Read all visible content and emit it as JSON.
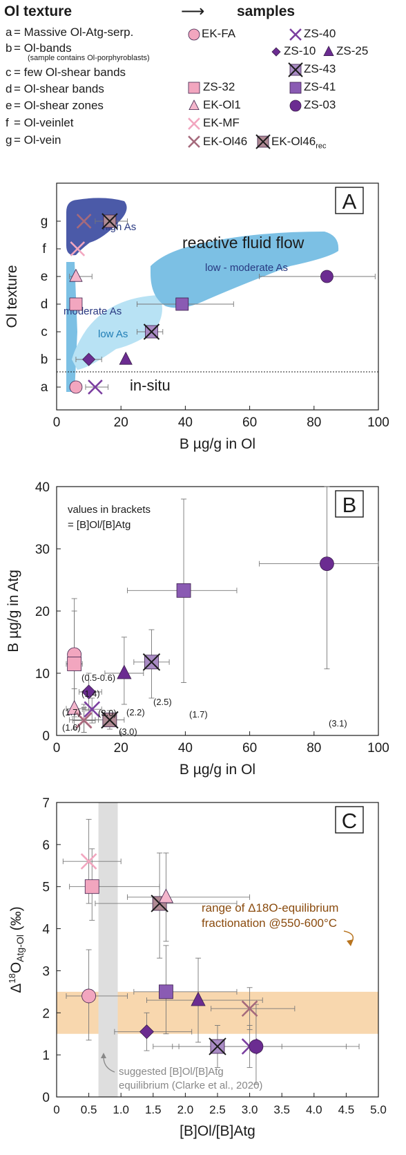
{
  "legend": {
    "texture_header": "Ol texture",
    "samples_header": "samples",
    "textures": [
      {
        "code": "a",
        "label": "= Massive Ol-Atg-serp."
      },
      {
        "code": "b",
        "label": "= Ol-bands"
      },
      {
        "code": "c",
        "label": "= few Ol-shear bands"
      },
      {
        "code": "d",
        "label": "= Ol-shear bands"
      },
      {
        "code": "e",
        "label": "= Ol-shear zones"
      },
      {
        "code": "f",
        "label": "= Ol-veinlet"
      },
      {
        "code": "g",
        "label": "= Ol-vein"
      }
    ],
    "band_note": "(sample contains Ol-porphyroblasts)",
    "samples": [
      {
        "name": "EK-FA",
        "shape": "circle",
        "color": "#f2a6bf"
      },
      {
        "name": "ZS-40",
        "shape": "x",
        "color": "#7b3fa0"
      },
      {
        "name": "ZS-10",
        "shape": "diamond",
        "color": "#6b2c91"
      },
      {
        "name": "ZS-25",
        "shape": "triangle",
        "color": "#6b2c91"
      },
      {
        "name": "ZS-43",
        "shape": "squarex",
        "color": "#a98bc4"
      },
      {
        "name": "ZS-32",
        "shape": "square",
        "color": "#f2a6bf"
      },
      {
        "name": "ZS-41",
        "shape": "square",
        "color": "#8a5bb3"
      },
      {
        "name": "EK-Ol1",
        "shape": "triangle",
        "color": "#f4b6cc"
      },
      {
        "name": "ZS-03",
        "shape": "circle",
        "color": "#6b2c91"
      },
      {
        "name": "EK-MF",
        "shape": "x",
        "color": "#f2a6bf"
      },
      {
        "name": "EK-Ol46",
        "shape": "x",
        "color": "#a56a7c"
      },
      {
        "name": "EK-Ol46",
        "sub": "rec",
        "shape": "squarex",
        "color": "#b08a94"
      }
    ]
  },
  "chart_data": [
    {
      "type": "scatter",
      "panel": "A",
      "xlabel": "B µg/g in Ol",
      "ylabel": "Ol texture",
      "xlim": [
        0,
        100
      ],
      "xticks": [
        0,
        20,
        40,
        60,
        80,
        100
      ],
      "ycategories": [
        "a",
        "b",
        "c",
        "d",
        "e",
        "f",
        "g"
      ],
      "grid": false,
      "points": [
        {
          "sample": "EK-FA",
          "x": 6,
          "y": "a"
        },
        {
          "sample": "ZS-40",
          "x": 12,
          "y": "a",
          "xerr": [
            9,
            16
          ]
        },
        {
          "sample": "ZS-10",
          "x": 10,
          "y": "b",
          "xerr": [
            6,
            14
          ]
        },
        {
          "sample": "ZS-25",
          "x": 21.5,
          "y": "b"
        },
        {
          "sample": "ZS-43",
          "x": 29.5,
          "y": "c",
          "xerr": [
            25,
            33
          ]
        },
        {
          "sample": "ZS-41",
          "x": 39,
          "y": "d",
          "xerr": [
            25,
            55
          ]
        },
        {
          "sample": "ZS-32",
          "x": 6,
          "y": "d"
        },
        {
          "sample": "EK-Ol1",
          "x": 6,
          "y": "e",
          "xerr": [
            4,
            11
          ]
        },
        {
          "sample": "ZS-03",
          "x": 84,
          "y": "e",
          "xerr": [
            63,
            99
          ]
        },
        {
          "sample": "EK-MF",
          "x": 6.5,
          "y": "f"
        },
        {
          "sample": "EK-Ol46",
          "x": 8.5,
          "y": "g"
        },
        {
          "sample": "EK-Ol46rec",
          "x": 16.5,
          "y": "g",
          "xerr": [
            12,
            22
          ]
        }
      ],
      "annotations": [
        "high As",
        "reactive fluid flow",
        "low - moderate As",
        "moderate As",
        "low As",
        "in-situ"
      ]
    },
    {
      "type": "scatter",
      "panel": "B",
      "xlabel": "B µg/g in Ol",
      "ylabel": "B µg/g in Atg",
      "xlim": [
        0,
        100
      ],
      "ylim": [
        0,
        40
      ],
      "xticks": [
        0,
        20,
        40,
        60,
        80,
        100
      ],
      "yticks": [
        0,
        10,
        20,
        30,
        40
      ],
      "grid": false,
      "note_line1": "values in brackets",
      "note_line2": "= [B]Ol/[B]Atg",
      "points": [
        {
          "sample": "EK-FA",
          "x": 5.5,
          "y": 13,
          "xerr": [
            4,
            7
          ],
          "yerr": [
            4,
            22
          ],
          "label": "(0.5-0.6)"
        },
        {
          "sample": "ZS-32",
          "x": 5.5,
          "y": 11.5,
          "xerr": [
            3,
            8
          ],
          "yerr": [
            3,
            20
          ]
        },
        {
          "sample": "ZS-10",
          "x": 10,
          "y": 7,
          "xerr": [
            7,
            14
          ],
          "yerr": [
            4,
            10
          ],
          "label": "(1.4)"
        },
        {
          "sample": "ZS-25",
          "x": 21,
          "y": 10,
          "xerr": [
            15,
            27
          ],
          "yerr": [
            5,
            15.8
          ],
          "label": "(2.2)"
        },
        {
          "sample": "ZS-43",
          "x": 29.5,
          "y": 11.8,
          "xerr": [
            24,
            35
          ],
          "yerr": [
            6,
            17
          ],
          "label": "(2.5)"
        },
        {
          "sample": "ZS-41",
          "x": 39.5,
          "y": 23.3,
          "xerr": [
            22,
            56
          ],
          "yerr": [
            8.5,
            38
          ],
          "label": "(1.7)"
        },
        {
          "sample": "ZS-03",
          "x": 84,
          "y": 27.6,
          "xerr": [
            63,
            100
          ],
          "yerr": [
            10.7,
            40
          ],
          "label": "(3.1)"
        },
        {
          "sample": "EK-Ol1",
          "x": 5.5,
          "y": 4.3,
          "xerr": [
            3,
            9
          ],
          "yerr": [
            1,
            7.5
          ],
          "label": "(1.7)"
        },
        {
          "sample": "ZS-40",
          "x": 11,
          "y": 4.2,
          "xerr": [
            8,
            14
          ],
          "yerr": [
            2,
            6
          ],
          "label": "(3.0)"
        },
        {
          "sample": "EK-MF",
          "x": 8.5,
          "y": 2.5,
          "xerr": [
            4,
            13
          ],
          "yerr": [
            0.5,
            5
          ],
          "label": "(1.6)"
        },
        {
          "sample": "EK-Ol46",
          "x": 8.5,
          "y": 2.4,
          "xerr": [
            5,
            12
          ],
          "yerr": [
            0.5,
            4.5
          ]
        },
        {
          "sample": "EK-Ol46rec",
          "x": 16.5,
          "y": 2.5,
          "xerr": [
            12,
            21
          ],
          "yerr": [
            1,
            4
          ],
          "label": "(3.0)"
        }
      ]
    },
    {
      "type": "scatter",
      "panel": "C",
      "xlabel": "[B]Ol/[B]Atg",
      "ylabel_main": "Δ",
      "ylabel_sup": "18",
      "ylabel_rest": "O",
      "ylabel_sub": "Atg-Ol",
      "ylabel_unit": "(‰)",
      "xlim": [
        0,
        5
      ],
      "ylim": [
        0,
        7
      ],
      "xticks": [
        "0",
        "0.5",
        "1.0",
        "1.5",
        "2.0",
        "2.5",
        "3.0",
        "3.5",
        "4.0",
        "4.5",
        "5.0"
      ],
      "yticks": [
        0,
        1,
        2,
        3,
        4,
        5,
        6,
        7
      ],
      "grid": false,
      "band_line1": "range of Δ18O-equilibrium",
      "band_line2": "fractionation @550-600°C",
      "band_range": [
        1.5,
        2.5
      ],
      "equilibrium_range": [
        0.65,
        0.95
      ],
      "equilibrium_line1": "suggested [B]Ol/[B]Atg",
      "equilibrium_line2": "equilibrium (Clarke et al., 2020)",
      "points": [
        {
          "sample": "EK-MF",
          "x": 0.5,
          "y": 5.6,
          "xerr": [
            0.1,
            1.0
          ],
          "yerr": [
            4.6,
            6.6
          ]
        },
        {
          "sample": "ZS-32",
          "x": 0.55,
          "y": 5.0,
          "xerr": [
            0.2,
            1.6
          ],
          "yerr": [
            4.2,
            5.9
          ]
        },
        {
          "sample": "EK-FA",
          "x": 0.5,
          "y": 2.4,
          "xerr": [
            0.15,
            1.1
          ],
          "yerr": [
            1.35,
            3.5
          ]
        },
        {
          "sample": "EK-Ol46rec",
          "x": 1.6,
          "y": 4.6,
          "xerr": [
            0.6,
            2.8
          ],
          "yerr": [
            3.3,
            5.8
          ]
        },
        {
          "sample": "EK-Ol1",
          "x": 1.7,
          "y": 4.75,
          "xerr": [
            1.1,
            3.0
          ],
          "yerr": [
            3.7,
            5.8
          ]
        },
        {
          "sample": "ZS-41",
          "x": 1.7,
          "y": 2.5,
          "xerr": [
            1.2,
            2.8
          ],
          "yerr": [
            1.5,
            3.6
          ]
        },
        {
          "sample": "ZS-25",
          "x": 2.2,
          "y": 2.3,
          "xerr": [
            1.4,
            3.2
          ],
          "yerr": [
            1.3,
            3.3
          ]
        },
        {
          "sample": "ZS-10",
          "x": 1.4,
          "y": 1.55,
          "xerr": [
            0.9,
            2.1
          ],
          "yerr": [
            1.1,
            2.0
          ]
        },
        {
          "sample": "ZS-43",
          "x": 2.5,
          "y": 1.2,
          "xerr": [
            1.5,
            3.5
          ],
          "yerr": [
            0.7,
            1.7
          ]
        },
        {
          "sample": "ZS-40",
          "x": 3.0,
          "y": 1.2,
          "xerr": [
            1.8,
            4.5
          ],
          "yerr": [
            0.7,
            1.7
          ]
        },
        {
          "sample": "ZS-03",
          "x": 3.1,
          "y": 1.2,
          "xerr": [
            1.9,
            4.7
          ],
          "yerr": [
            0.3,
            2.2
          ]
        },
        {
          "sample": "EK-Ol46",
          "x": 3.0,
          "y": 2.1,
          "xerr": [
            2.4,
            3.7
          ],
          "yerr": [
            1.6,
            2.6
          ]
        }
      ]
    }
  ],
  "colors": {
    "pink": "#f2a6bf",
    "purple_dark": "#6b2c91",
    "purple_mid": "#8a5bb3",
    "purple_light": "#a98bc4",
    "high_as_field": "#4b5aa8",
    "moderate_field": "#7cc0e4",
    "low_field": "#b8e2f4",
    "band_orange": "#f8d7ae",
    "eq_grey": "#dedede",
    "arrow_brown": "#b8741f"
  },
  "panel_labels": [
    "A",
    "B",
    "C"
  ]
}
